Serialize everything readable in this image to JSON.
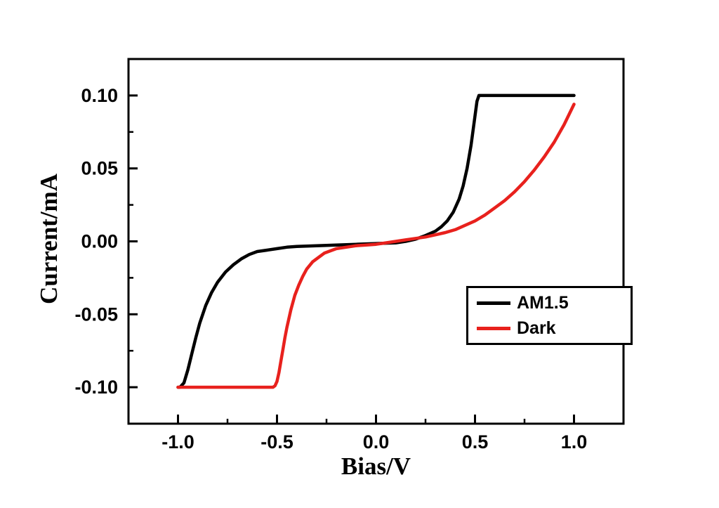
{
  "figure": {
    "background": "#ffffff",
    "frame_color": "#000000"
  },
  "chart_data": {
    "type": "line",
    "title": "",
    "xlabel": "Bias/V",
    "ylabel": "Current/mA",
    "xlim": [
      -1.25,
      1.25
    ],
    "ylim": [
      -0.125,
      0.125
    ],
    "grid": false,
    "x_ticks": [
      -1.0,
      -0.5,
      0.0,
      0.5,
      1.0
    ],
    "x_tick_labels": [
      "-1.0",
      "-0.5",
      "0.0",
      "0.5",
      "1.0"
    ],
    "x_minor_ticks": [
      -0.75,
      -0.25,
      0.25,
      0.75
    ],
    "y_ticks": [
      0.1,
      0.05,
      0.0,
      -0.05,
      -0.1
    ],
    "y_tick_labels": [
      "0.10",
      "0.05",
      "0.00",
      "-0.05",
      "-0.10"
    ],
    "y_minor_ticks": [
      0.075,
      0.025,
      -0.025,
      -0.075
    ],
    "legend": {
      "position": "inside lower right",
      "entries": [
        {
          "label": "AM1.5",
          "color": "#000000"
        },
        {
          "label": "Dark",
          "color": "#e8211d"
        }
      ]
    },
    "series": [
      {
        "name": "AM1.5",
        "color": "#000000",
        "points": [
          [
            -1.0,
            -0.1
          ],
          [
            -0.99,
            -0.1
          ],
          [
            -0.97,
            -0.097
          ],
          [
            -0.95,
            -0.088
          ],
          [
            -0.93,
            -0.077
          ],
          [
            -0.91,
            -0.066
          ],
          [
            -0.89,
            -0.056
          ],
          [
            -0.86,
            -0.044
          ],
          [
            -0.83,
            -0.035
          ],
          [
            -0.8,
            -0.028
          ],
          [
            -0.76,
            -0.021
          ],
          [
            -0.72,
            -0.016
          ],
          [
            -0.68,
            -0.012
          ],
          [
            -0.64,
            -0.009
          ],
          [
            -0.6,
            -0.007
          ],
          [
            -0.55,
            -0.006
          ],
          [
            -0.5,
            -0.005
          ],
          [
            -0.45,
            -0.004
          ],
          [
            -0.4,
            -0.0035
          ],
          [
            -0.3,
            -0.003
          ],
          [
            -0.2,
            -0.0025
          ],
          [
            -0.1,
            -0.002
          ],
          [
            0.0,
            -0.0015
          ],
          [
            0.1,
            -0.001
          ],
          [
            0.15,
            0.0
          ],
          [
            0.2,
            0.0015
          ],
          [
            0.25,
            0.004
          ],
          [
            0.3,
            0.007
          ],
          [
            0.33,
            0.01
          ],
          [
            0.36,
            0.014
          ],
          [
            0.39,
            0.02
          ],
          [
            0.42,
            0.029
          ],
          [
            0.44,
            0.038
          ],
          [
            0.46,
            0.05
          ],
          [
            0.48,
            0.066
          ],
          [
            0.5,
            0.086
          ],
          [
            0.51,
            0.096
          ],
          [
            0.52,
            0.1
          ],
          [
            0.55,
            0.1
          ],
          [
            0.6,
            0.1
          ],
          [
            0.7,
            0.1
          ],
          [
            0.8,
            0.1
          ],
          [
            0.9,
            0.1
          ],
          [
            1.0,
            0.1
          ]
        ]
      },
      {
        "name": "Dark",
        "color": "#e8211d",
        "points": [
          [
            -1.0,
            -0.1
          ],
          [
            -0.9,
            -0.1
          ],
          [
            -0.8,
            -0.1
          ],
          [
            -0.7,
            -0.1
          ],
          [
            -0.6,
            -0.1
          ],
          [
            -0.52,
            -0.1
          ],
          [
            -0.51,
            -0.099
          ],
          [
            -0.5,
            -0.096
          ],
          [
            -0.49,
            -0.09
          ],
          [
            -0.48,
            -0.082
          ],
          [
            -0.47,
            -0.074
          ],
          [
            -0.46,
            -0.066
          ],
          [
            -0.45,
            -0.059
          ],
          [
            -0.43,
            -0.047
          ],
          [
            -0.41,
            -0.037
          ],
          [
            -0.39,
            -0.03
          ],
          [
            -0.37,
            -0.024
          ],
          [
            -0.35,
            -0.019
          ],
          [
            -0.32,
            -0.014
          ],
          [
            -0.29,
            -0.011
          ],
          [
            -0.26,
            -0.008
          ],
          [
            -0.23,
            -0.0065
          ],
          [
            -0.2,
            -0.005
          ],
          [
            -0.15,
            -0.004
          ],
          [
            -0.1,
            -0.003
          ],
          [
            -0.05,
            -0.0025
          ],
          [
            0.0,
            -0.002
          ],
          [
            0.05,
            -0.001
          ],
          [
            0.1,
            0.0
          ],
          [
            0.15,
            0.001
          ],
          [
            0.2,
            0.002
          ],
          [
            0.25,
            0.003
          ],
          [
            0.3,
            0.0045
          ],
          [
            0.35,
            0.006
          ],
          [
            0.4,
            0.008
          ],
          [
            0.45,
            0.011
          ],
          [
            0.5,
            0.014
          ],
          [
            0.55,
            0.018
          ],
          [
            0.6,
            0.023
          ],
          [
            0.65,
            0.028
          ],
          [
            0.7,
            0.034
          ],
          [
            0.75,
            0.041
          ],
          [
            0.8,
            0.049
          ],
          [
            0.85,
            0.058
          ],
          [
            0.9,
            0.068
          ],
          [
            0.95,
            0.08
          ],
          [
            1.0,
            0.094
          ]
        ]
      }
    ]
  }
}
